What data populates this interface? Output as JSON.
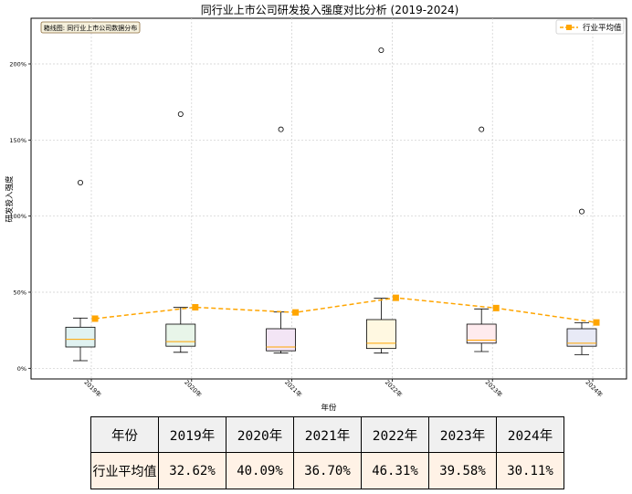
{
  "chart_data": {
    "type": "box",
    "title": "同行业上市公司研发投入强度对比分析 (2019-2024)",
    "xlabel": "年份",
    "ylabel": "研发投入强度",
    "categories": [
      "2019年",
      "2020年",
      "2021年",
      "2022年",
      "2023年",
      "2024年"
    ],
    "y_ticks": [
      0,
      50,
      100,
      150,
      200
    ],
    "y_tick_labels": [
      "0%",
      "50%",
      "100%",
      "150%",
      "200%"
    ],
    "ylim": [
      -7,
      230
    ],
    "grid": true,
    "annotation": "箱线图: 同行业上市公司数据分布",
    "legend": {
      "position": "top-right",
      "entries": [
        "行业平均值"
      ]
    },
    "boxes": [
      {
        "category": "2019年",
        "whisker_low": 5,
        "q1": 14,
        "median": 19,
        "q3": 27,
        "whisker_high": 33,
        "outliers": [
          122
        ],
        "fill": "#e0f2f1"
      },
      {
        "category": "2020年",
        "whisker_low": 10.5,
        "q1": 14.5,
        "median": 17.5,
        "q3": 29,
        "whisker_high": 40,
        "outliers": [
          167
        ],
        "fill": "#e8f5e9"
      },
      {
        "category": "2021年",
        "whisker_low": 10,
        "q1": 11.5,
        "median": 14,
        "q3": 26,
        "whisker_high": 37,
        "outliers": [
          157
        ],
        "fill": "#f3e5f5"
      },
      {
        "category": "2022年",
        "whisker_low": 10,
        "q1": 13,
        "median": 16.5,
        "q3": 32,
        "whisker_high": 46,
        "outliers": [
          209
        ],
        "fill": "#fff8e1"
      },
      {
        "category": "2023年",
        "whisker_low": 11,
        "q1": 16.5,
        "median": 18.5,
        "q3": 29,
        "whisker_high": 39,
        "outliers": [
          157
        ],
        "fill": "#ffebee"
      },
      {
        "category": "2024年",
        "whisker_low": 9,
        "q1": 14.5,
        "median": 16.5,
        "q3": 26,
        "whisker_high": 30,
        "outliers": [
          103
        ],
        "fill": "#e8eaf6"
      }
    ],
    "series": [
      {
        "name": "行业平均值",
        "type": "line",
        "style": "dashed",
        "marker": "square",
        "color": "#ffa500",
        "values": [
          32.62,
          40.09,
          36.7,
          46.31,
          39.58,
          30.11
        ]
      }
    ]
  },
  "table": {
    "header_label": "年份",
    "row_label": "行业平均值",
    "years": [
      "2019年",
      "2020年",
      "2021年",
      "2022年",
      "2023年",
      "2024年"
    ],
    "values": [
      "32.62%",
      "40.09%",
      "36.70%",
      "46.31%",
      "39.58%",
      "30.11%"
    ]
  }
}
